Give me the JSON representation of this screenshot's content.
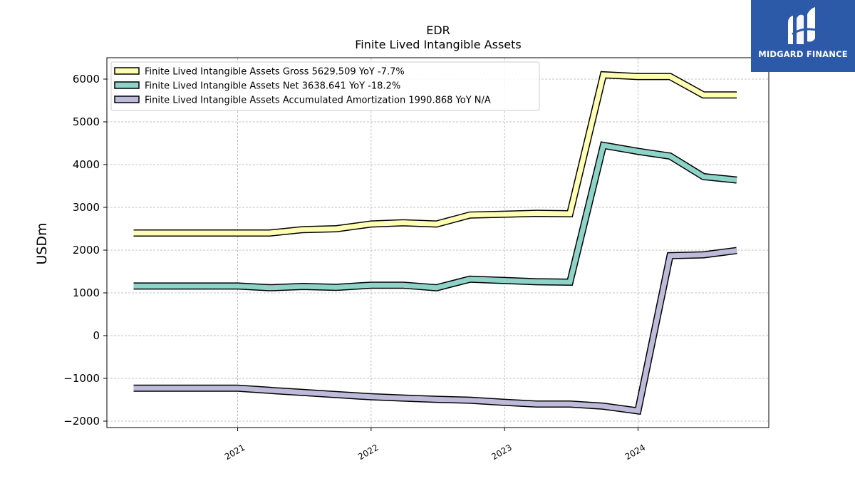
{
  "chart_data": {
    "type": "line",
    "title": "EDR",
    "subtitle": "Finite Lived Intangible Assets",
    "ylabel": "USDm",
    "ylim": [
      -2150,
      6500
    ],
    "yticks": [
      -2000,
      -1000,
      0,
      1000,
      2000,
      3000,
      4000,
      5000,
      6000
    ],
    "ytick_labels": [
      "−2000",
      "−1000",
      "0",
      "1000",
      "2000",
      "3000",
      "4000",
      "5000",
      "6000"
    ],
    "xlim": [
      2020.02,
      2024.98
    ],
    "xticks": [
      2021,
      2022,
      2023,
      2024
    ],
    "xtick_labels": [
      "2021",
      "2022",
      "2023",
      "2024"
    ],
    "grid": true,
    "legend_position": "upper-left",
    "x": [
      2020.22,
      2021.0,
      2021.24,
      2021.49,
      2021.74,
      2022.0,
      2022.24,
      2022.49,
      2022.74,
      2023.0,
      2023.24,
      2023.49,
      2023.74,
      2024.0,
      2024.24,
      2024.49,
      2024.74
    ],
    "series": [
      {
        "name": "Finite Lived Intangible Assets Gross",
        "legend": "Finite Lived Intangible Assets Gross  5629.509 YoY -7.7%",
        "color": "#ffffb3",
        "values": [
          2400,
          2400,
          2400,
          2480,
          2500,
          2610,
          2640,
          2610,
          2820,
          2840,
          2860,
          2850,
          6100,
          6060,
          6060,
          5630,
          5630
        ]
      },
      {
        "name": "Finite Lived Intangible Assets Net",
        "legend": "Finite Lived Intangible Assets Net  3638.641 YoY -18.2%",
        "color": "#8dd3c7",
        "values": [
          1160,
          1160,
          1120,
          1150,
          1130,
          1180,
          1180,
          1120,
          1320,
          1290,
          1260,
          1250,
          4450,
          4310,
          4200,
          3720,
          3640
        ]
      },
      {
        "name": "Finite Lived Intangible Assets Accumulated Amortization",
        "legend": "Finite Lived Intangible Assets Accumulated Amortization  1990.868 YoY N/A",
        "color": "#bebada",
        "values": [
          -1230,
          -1230,
          -1280,
          -1330,
          -1380,
          -1430,
          -1460,
          -1490,
          -1510,
          -1560,
          -1600,
          -1600,
          -1650,
          -1760,
          1870,
          1890,
          1990
        ]
      }
    ]
  },
  "logo": {
    "text": "MIDGARD FINANCE",
    "background": "#2c5aa8"
  }
}
